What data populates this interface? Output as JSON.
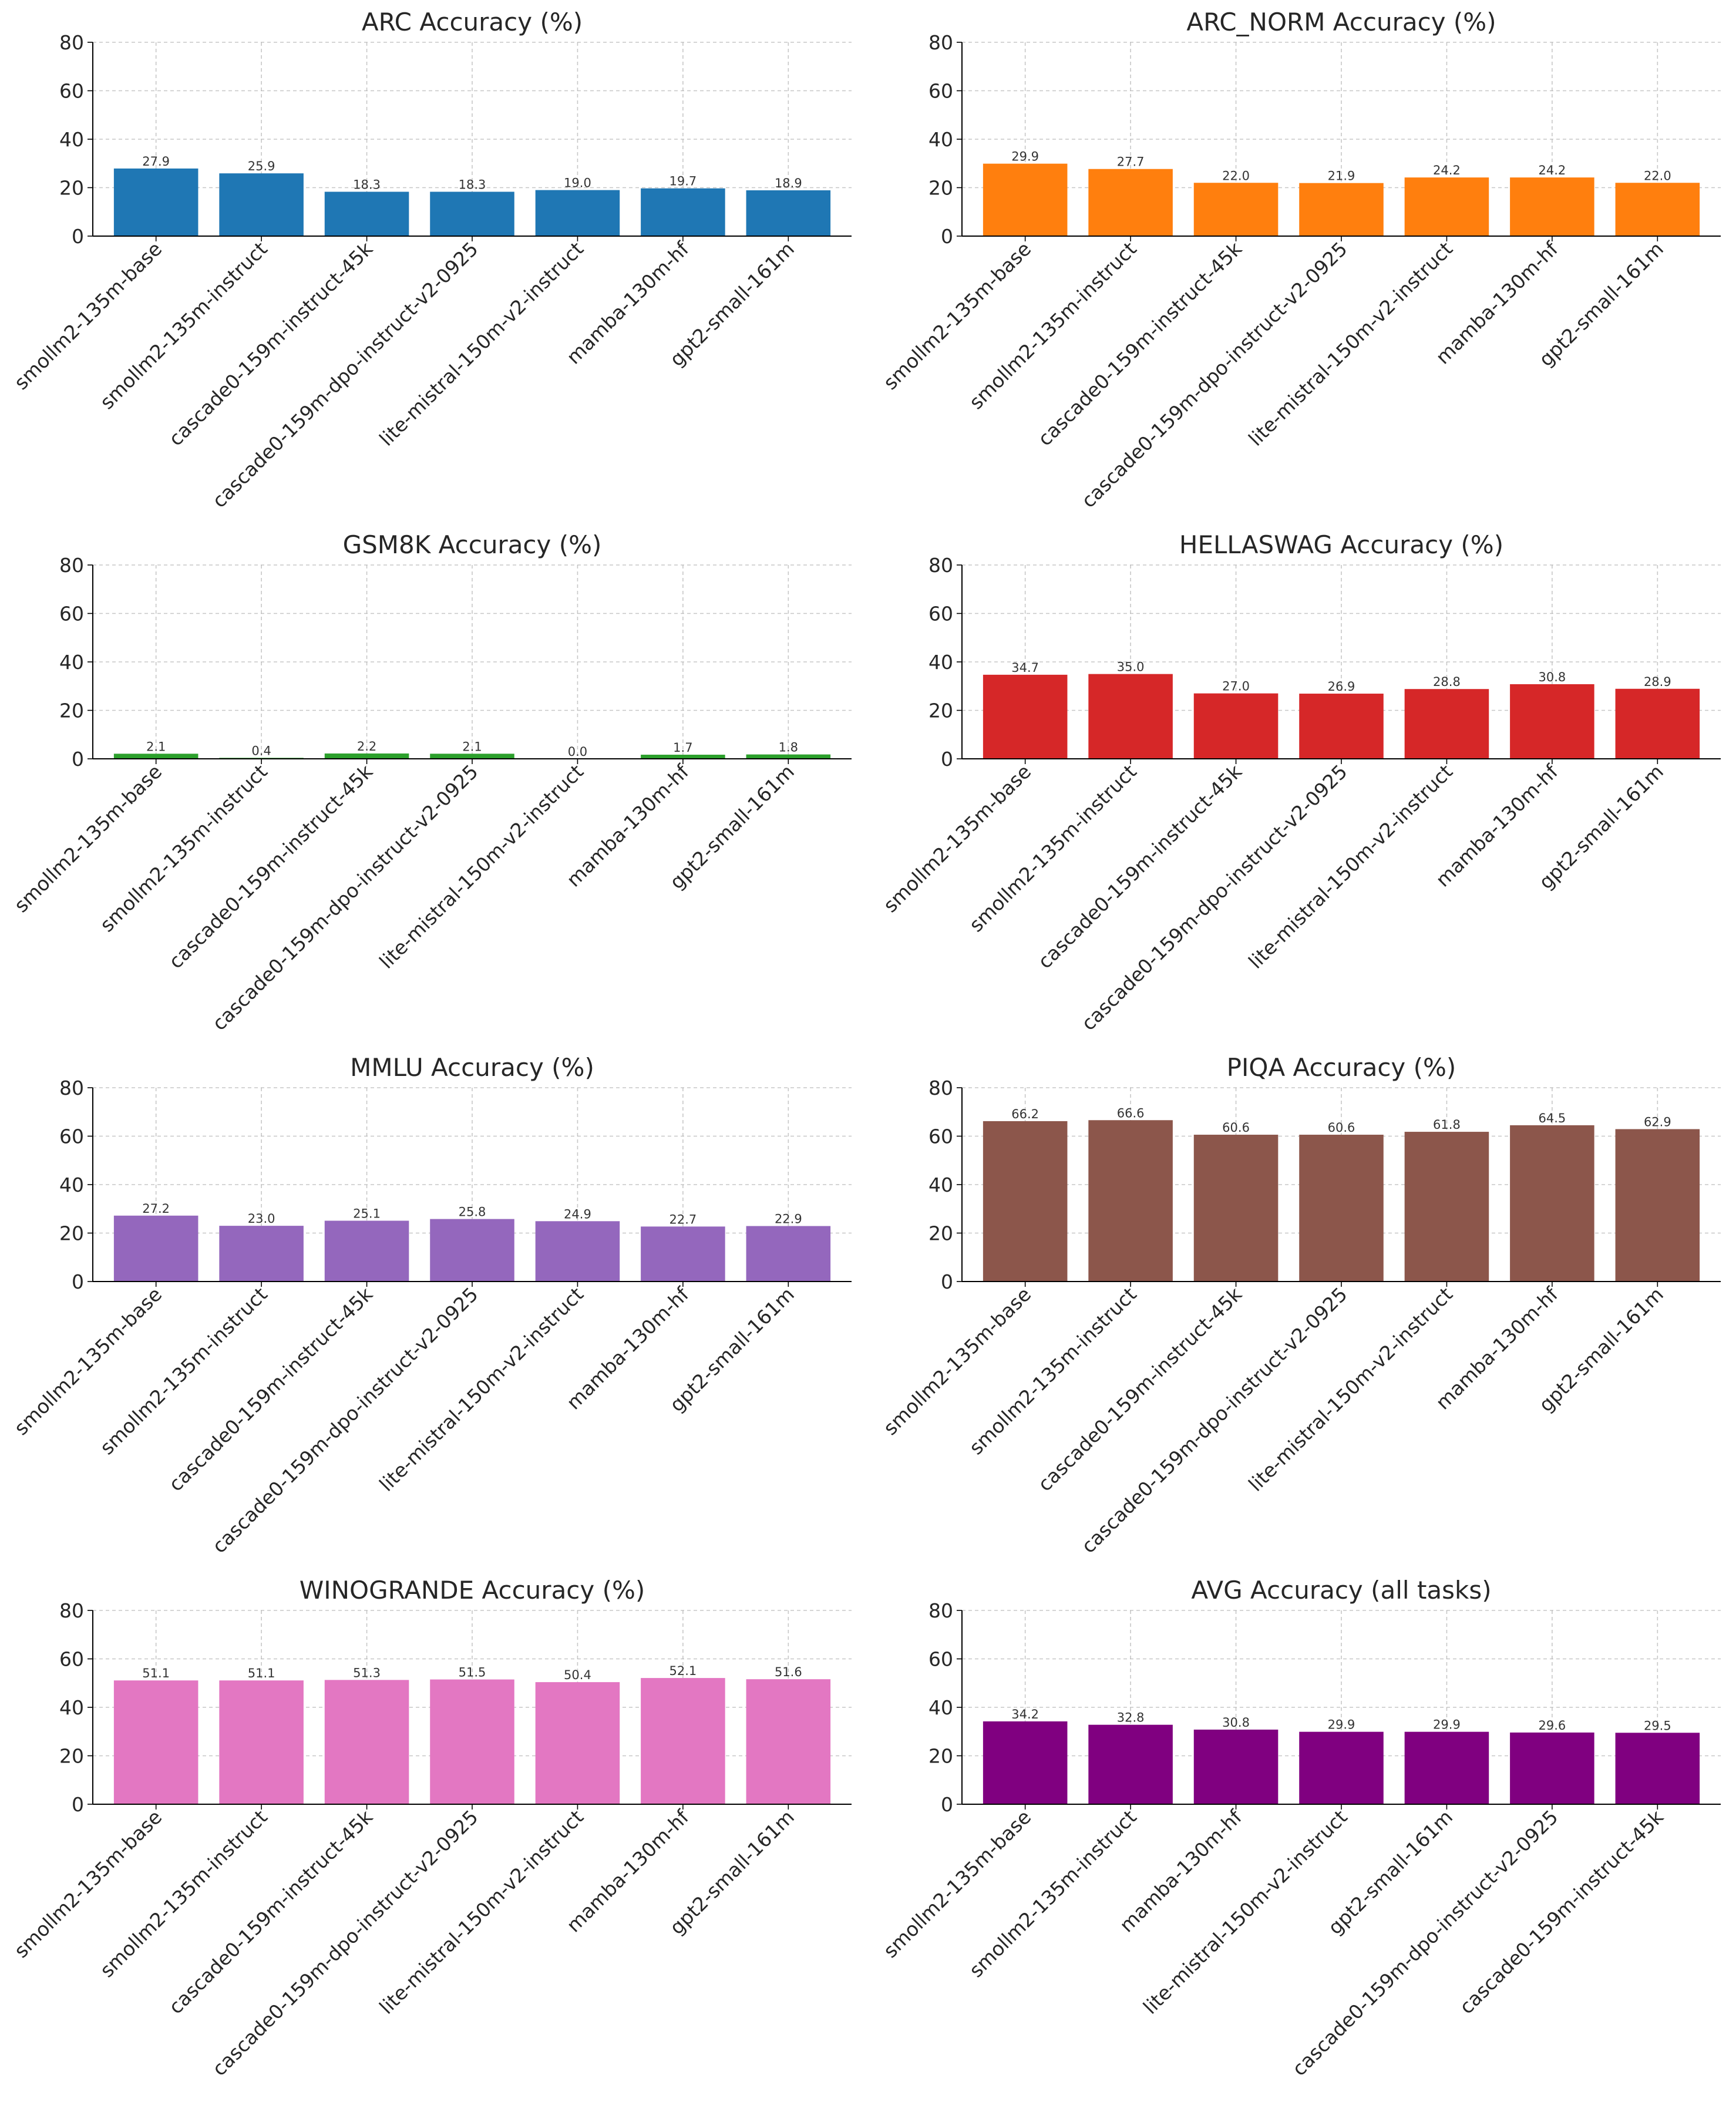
{
  "figure": {},
  "chart_data": [
    {
      "type": "bar",
      "title": "ARC Accuracy (%)",
      "color": "#1f77b4",
      "categories": [
        "smollm2-135m-base",
        "smollm2-135m-instruct",
        "cascade0-159m-instruct-45k",
        "cascade0-159m-dpo-instruct-v2-0925",
        "lite-mistral-150m-v2-instruct",
        "mamba-130m-hf",
        "gpt2-small-161m"
      ],
      "values": [
        27.9,
        25.9,
        18.3,
        18.3,
        19.0,
        19.7,
        18.9
      ],
      "value_labels": [
        "27.9",
        "25.9",
        "18.3",
        "18.3",
        "19.0",
        "19.7",
        "18.9"
      ],
      "yticks": [
        "0",
        "20",
        "40",
        "60",
        "80"
      ],
      "ylim": [
        0,
        80
      ],
      "grid": true
    },
    {
      "type": "bar",
      "title": "ARC_NORM Accuracy (%)",
      "color": "#ff7f0e",
      "categories": [
        "smollm2-135m-base",
        "smollm2-135m-instruct",
        "cascade0-159m-instruct-45k",
        "cascade0-159m-dpo-instruct-v2-0925",
        "lite-mistral-150m-v2-instruct",
        "mamba-130m-hf",
        "gpt2-small-161m"
      ],
      "values": [
        29.9,
        27.7,
        22.0,
        21.9,
        24.2,
        24.2,
        22.0
      ],
      "value_labels": [
        "29.9",
        "27.7",
        "22.0",
        "21.9",
        "24.2",
        "24.2",
        "22.0"
      ],
      "yticks": [
        "0",
        "20",
        "40",
        "60",
        "80"
      ],
      "ylim": [
        0,
        80
      ],
      "grid": true
    },
    {
      "type": "bar",
      "title": "GSM8K Accuracy (%)",
      "color": "#2ca02c",
      "categories": [
        "smollm2-135m-base",
        "smollm2-135m-instruct",
        "cascade0-159m-instruct-45k",
        "cascade0-159m-dpo-instruct-v2-0925",
        "lite-mistral-150m-v2-instruct",
        "mamba-130m-hf",
        "gpt2-small-161m"
      ],
      "values": [
        2.1,
        0.4,
        2.2,
        2.1,
        0.0,
        1.7,
        1.8
      ],
      "value_labels": [
        "2.1",
        "0.4",
        "2.2",
        "2.1",
        "0.0",
        "1.7",
        "1.8"
      ],
      "yticks": [
        "0",
        "20",
        "40",
        "60",
        "80"
      ],
      "ylim": [
        0,
        80
      ],
      "grid": true
    },
    {
      "type": "bar",
      "title": "HELLASWAG Accuracy (%)",
      "color": "#d62728",
      "categories": [
        "smollm2-135m-base",
        "smollm2-135m-instruct",
        "cascade0-159m-instruct-45k",
        "cascade0-159m-dpo-instruct-v2-0925",
        "lite-mistral-150m-v2-instruct",
        "mamba-130m-hf",
        "gpt2-small-161m"
      ],
      "values": [
        34.7,
        35.0,
        27.0,
        26.9,
        28.8,
        30.8,
        28.9
      ],
      "value_labels": [
        "34.7",
        "35.0",
        "27.0",
        "26.9",
        "28.8",
        "30.8",
        "28.9"
      ],
      "yticks": [
        "0",
        "20",
        "40",
        "60",
        "80"
      ],
      "ylim": [
        0,
        80
      ],
      "grid": true
    },
    {
      "type": "bar",
      "title": "MMLU Accuracy (%)",
      "color": "#9467bd",
      "categories": [
        "smollm2-135m-base",
        "smollm2-135m-instruct",
        "cascade0-159m-instruct-45k",
        "cascade0-159m-dpo-instruct-v2-0925",
        "lite-mistral-150m-v2-instruct",
        "mamba-130m-hf",
        "gpt2-small-161m"
      ],
      "values": [
        27.2,
        23.0,
        25.1,
        25.8,
        24.9,
        22.7,
        22.9
      ],
      "value_labels": [
        "27.2",
        "23.0",
        "25.1",
        "25.8",
        "24.9",
        "22.7",
        "22.9"
      ],
      "yticks": [
        "0",
        "20",
        "40",
        "60",
        "80"
      ],
      "ylim": [
        0,
        80
      ],
      "grid": true
    },
    {
      "type": "bar",
      "title": "PIQA Accuracy (%)",
      "color": "#8c564b",
      "categories": [
        "smollm2-135m-base",
        "smollm2-135m-instruct",
        "cascade0-159m-instruct-45k",
        "cascade0-159m-dpo-instruct-v2-0925",
        "lite-mistral-150m-v2-instruct",
        "mamba-130m-hf",
        "gpt2-small-161m"
      ],
      "values": [
        66.2,
        66.6,
        60.6,
        60.6,
        61.8,
        64.5,
        62.9
      ],
      "value_labels": [
        "66.2",
        "66.6",
        "60.6",
        "60.6",
        "61.8",
        "64.5",
        "62.9"
      ],
      "yticks": [
        "0",
        "20",
        "40",
        "60",
        "80"
      ],
      "ylim": [
        0,
        80
      ],
      "grid": true
    },
    {
      "type": "bar",
      "title": "WINOGRANDE Accuracy (%)",
      "color": "#e377c2",
      "categories": [
        "smollm2-135m-base",
        "smollm2-135m-instruct",
        "cascade0-159m-instruct-45k",
        "cascade0-159m-dpo-instruct-v2-0925",
        "lite-mistral-150m-v2-instruct",
        "mamba-130m-hf",
        "gpt2-small-161m"
      ],
      "values": [
        51.1,
        51.1,
        51.3,
        51.5,
        50.4,
        52.1,
        51.6
      ],
      "value_labels": [
        "51.1",
        "51.1",
        "51.3",
        "51.5",
        "50.4",
        "52.1",
        "51.6"
      ],
      "yticks": [
        "0",
        "20",
        "40",
        "60",
        "80"
      ],
      "ylim": [
        0,
        80
      ],
      "grid": true
    },
    {
      "type": "bar",
      "title": "AVG Accuracy (all tasks)",
      "color": "#800080",
      "categories": [
        "smollm2-135m-base",
        "smollm2-135m-instruct",
        "mamba-130m-hf",
        "lite-mistral-150m-v2-instruct",
        "gpt2-small-161m",
        "cascade0-159m-dpo-instruct-v2-0925",
        "cascade0-159m-instruct-45k"
      ],
      "values": [
        34.2,
        32.8,
        30.8,
        29.9,
        29.9,
        29.6,
        29.5
      ],
      "value_labels": [
        "34.2",
        "32.8",
        "30.8",
        "29.9",
        "29.9",
        "29.6",
        "29.5"
      ],
      "yticks": [
        "0",
        "20",
        "40",
        "60",
        "80"
      ],
      "ylim": [
        0,
        80
      ],
      "grid": true
    }
  ]
}
